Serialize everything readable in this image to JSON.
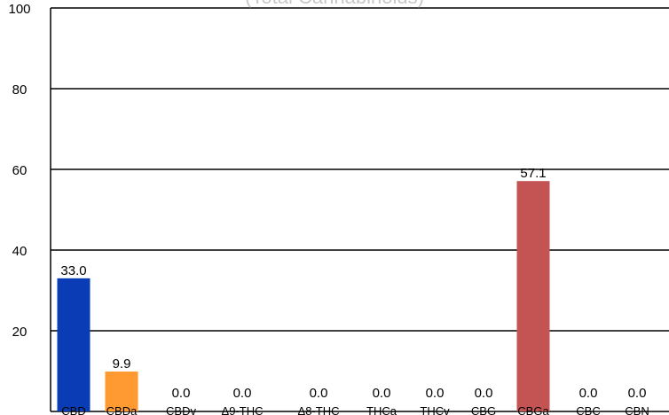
{
  "chart_data": {
    "type": "bar",
    "title": "(Total Cannabinoids)",
    "xlabel": "",
    "ylabel": "",
    "ylim": [
      0,
      100
    ],
    "yticks": [
      20,
      40,
      60,
      80,
      100
    ],
    "grid": true,
    "legend": "none",
    "categories": [
      "CBD",
      "CBDa",
      "CBDv",
      "Δ9-THC",
      "Δ8-THC",
      "THCa",
      "THCv",
      "CBG",
      "CBGa",
      "CBC",
      "CBN"
    ],
    "values": [
      33.0,
      9.9,
      0.0,
      0.0,
      0.0,
      0.0,
      0.0,
      0.0,
      57.1,
      0.0,
      0.0
    ],
    "value_labels": [
      "33.0",
      "9.9",
      "0.0",
      "0.0",
      "0.0",
      "0.0",
      "0.0",
      "0.0",
      "57.1",
      "0.0",
      "0.0"
    ],
    "colors": [
      "#0a3db5",
      "#ff9a33",
      "#999999",
      "#999999",
      "#999999",
      "#999999",
      "#999999",
      "#999999",
      "#c45454",
      "#999999",
      "#999999"
    ]
  }
}
